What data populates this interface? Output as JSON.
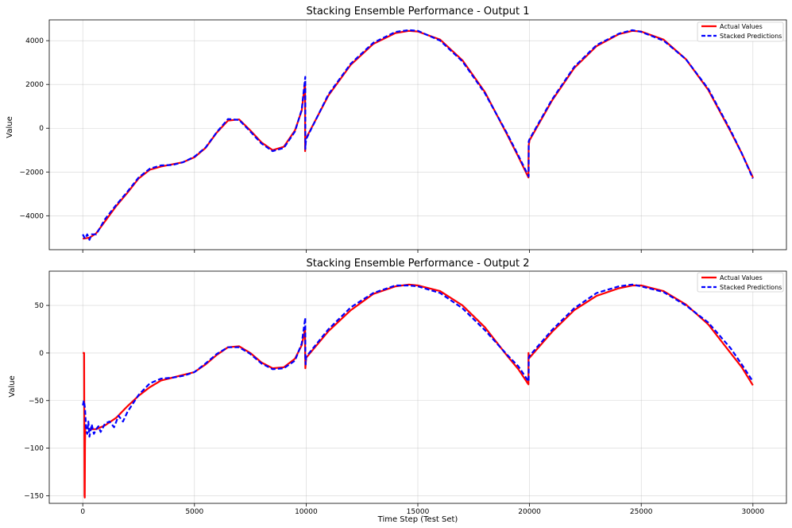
{
  "figure": {
    "xlabel": "Time Step (Test Set)"
  },
  "chart_data": [
    {
      "type": "line",
      "title": "Stacking Ensemble Performance - Output 1",
      "xlabel": "",
      "ylabel": "Value",
      "xlim": [
        -1500,
        31500
      ],
      "ylim": [
        -5550,
        4950
      ],
      "xticks": [
        0,
        5000,
        10000,
        15000,
        20000,
        25000,
        30000
      ],
      "xtick_labels": [
        "",
        "",
        "",
        "",
        "",
        "",
        ""
      ],
      "yticks": [
        -4000,
        -2000,
        0,
        2000,
        4000
      ],
      "ytick_labels": [
        "−4000",
        "−2000",
        "0",
        "2000",
        "4000"
      ],
      "grid": true,
      "legend": "top-right",
      "series": [
        {
          "name": "Actual Values",
          "color": "#ff0000",
          "style": "solid",
          "x": [
            0,
            300,
            600,
            1000,
            1500,
            2000,
            2500,
            3000,
            3500,
            4000,
            4500,
            5000,
            5500,
            6000,
            6500,
            7000,
            7500,
            8000,
            8500,
            9000,
            9500,
            9800,
            9950,
            9955,
            9960,
            9965,
            10000,
            11000,
            12000,
            13000,
            14000,
            14600,
            15000,
            16000,
            17000,
            18000,
            19000,
            19500,
            19950,
            19955,
            19960,
            20000,
            21000,
            22000,
            23000,
            24000,
            24600,
            25000,
            26000,
            27000,
            28000,
            29000,
            29500,
            30000
          ],
          "y": [
            -5050,
            -5000,
            -4800,
            -4250,
            -3550,
            -2950,
            -2300,
            -1900,
            -1750,
            -1650,
            -1550,
            -1330,
            -900,
            -200,
            350,
            400,
            -100,
            -650,
            -1000,
            -850,
            -100,
            800,
            2100,
            -1050,
            -700,
            -500,
            -450,
            1500,
            2900,
            3850,
            4350,
            4450,
            4420,
            4050,
            3100,
            1650,
            -300,
            -1300,
            -2250,
            -1500,
            -800,
            -550,
            1250,
            2750,
            3750,
            4300,
            4450,
            4420,
            4050,
            3150,
            1750,
            -150,
            -1150,
            -2250
          ]
        },
        {
          "name": "Stacked Predictions",
          "color": "#0000ff",
          "style": "dashed",
          "x": [
            0,
            100,
            200,
            300,
            400,
            600,
            1000,
            1500,
            2000,
            2500,
            3000,
            3500,
            4000,
            4500,
            5000,
            5500,
            6000,
            6500,
            7000,
            7500,
            8000,
            8500,
            9000,
            9500,
            9800,
            9960,
            9965,
            9980,
            10000,
            11000,
            12000,
            13000,
            14000,
            14600,
            15000,
            16000,
            17000,
            18000,
            19000,
            19500,
            19960,
            19965,
            20000,
            21000,
            22000,
            23000,
            24000,
            24600,
            25000,
            26000,
            27000,
            28000,
            29000,
            29500,
            30000
          ],
          "y": [
            -4850,
            -5050,
            -4850,
            -5100,
            -4850,
            -4850,
            -4150,
            -3500,
            -2900,
            -2250,
            -1850,
            -1700,
            -1680,
            -1550,
            -1300,
            -880,
            -180,
            420,
            380,
            -150,
            -700,
            -1050,
            -900,
            -150,
            850,
            2350,
            -950,
            -700,
            -500,
            1550,
            2950,
            3900,
            4400,
            4480,
            4450,
            4000,
            3050,
            1600,
            -250,
            -1250,
            -2200,
            -600,
            -500,
            1300,
            2800,
            3800,
            4320,
            4480,
            4400,
            4000,
            3150,
            1800,
            -100,
            -1150,
            -2300
          ]
        }
      ]
    },
    {
      "type": "line",
      "title": "Stacking Ensemble Performance - Output 2",
      "xlabel": "Time Step (Test Set)",
      "ylabel": "Value",
      "xlim": [
        -1500,
        31500
      ],
      "ylim": [
        -158,
        86
      ],
      "xticks": [
        0,
        5000,
        10000,
        15000,
        20000,
        25000,
        30000
      ],
      "xtick_labels": [
        "0",
        "5000",
        "10000",
        "15000",
        "20000",
        "25000",
        "30000"
      ],
      "yticks": [
        -150,
        -100,
        -50,
        0,
        50
      ],
      "ytick_labels": [
        "−150",
        "−100",
        "−50",
        "0",
        "50"
      ],
      "grid": true,
      "legend": "top-right",
      "series": [
        {
          "name": "Actual Values",
          "color": "#ff0000",
          "style": "solid",
          "x": [
            0,
            60,
            80,
            90,
            100,
            110,
            150,
            300,
            600,
            1000,
            1500,
            2000,
            2500,
            3000,
            3500,
            4000,
            4500,
            5000,
            5500,
            6000,
            6500,
            7000,
            7500,
            8000,
            8500,
            9000,
            9500,
            9800,
            9950,
            9955,
            9960,
            9965,
            10000,
            11000,
            12000,
            13000,
            14000,
            14600,
            15000,
            16000,
            17000,
            18000,
            19000,
            19500,
            19950,
            19955,
            19960,
            20000,
            21000,
            22000,
            23000,
            24000,
            24600,
            25000,
            26000,
            27000,
            28000,
            29000,
            29500,
            30000
          ],
          "y": [
            0,
            0,
            -150,
            -152,
            -100,
            -78,
            -78,
            -80,
            -80,
            -76,
            -68,
            -56,
            -45,
            -36,
            -29,
            -26,
            -23,
            -20,
            -12,
            -2,
            6,
            7,
            0,
            -10,
            -16,
            -15,
            -6,
            8,
            25,
            -2,
            -10,
            -16,
            -5,
            23,
            45,
            62,
            70,
            72,
            71,
            65,
            50,
            27,
            -3,
            -17,
            -33,
            0,
            -5,
            -5,
            22,
            45,
            60,
            68,
            71,
            71,
            65,
            51,
            30,
            0,
            -15,
            -34
          ]
        },
        {
          "name": "Stacked Predictions",
          "color": "#0000ff",
          "style": "dashed",
          "x": [
            0,
            50,
            100,
            150,
            200,
            250,
            300,
            400,
            500,
            600,
            700,
            800,
            1000,
            1200,
            1400,
            1600,
            1800,
            2000,
            2500,
            3000,
            3500,
            4000,
            4500,
            5000,
            5500,
            6000,
            6500,
            7000,
            7500,
            8000,
            8500,
            9000,
            9500,
            9800,
            9960,
            9965,
            9980,
            10000,
            11000,
            12000,
            13000,
            14000,
            14600,
            15000,
            16000,
            17000,
            18000,
            19000,
            19500,
            19960,
            19965,
            20000,
            21000,
            22000,
            23000,
            24000,
            24600,
            25000,
            26000,
            27000,
            28000,
            29000,
            29500,
            30000
          ],
          "y": [
            -55,
            -50,
            -58,
            -80,
            -85,
            -72,
            -88,
            -75,
            -85,
            -80,
            -77,
            -83,
            -74,
            -72,
            -78,
            -66,
            -72,
            -62,
            -44,
            -32,
            -27,
            -26,
            -24,
            -20,
            -11,
            -1,
            6,
            6,
            -1,
            -11,
            -17,
            -16,
            -8,
            10,
            37,
            -5,
            -12,
            -4,
            25,
            48,
            63,
            71,
            71,
            70,
            63,
            47,
            24,
            -2,
            -14,
            -30,
            -5,
            -3,
            24,
            47,
            63,
            70,
            72,
            70,
            64,
            50,
            32,
            5,
            -12,
            -30
          ]
        }
      ]
    }
  ]
}
